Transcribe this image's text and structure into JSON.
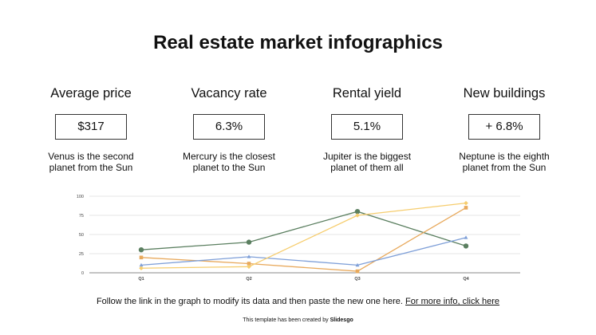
{
  "title": "Real estate market infographics",
  "stats": [
    {
      "label": "Average price",
      "value": "$317",
      "desc1": "Venus is the second",
      "desc2": "planet from the Sun"
    },
    {
      "label": "Vacancy rate",
      "value": "6.3%",
      "desc1": "Mercury is the closest",
      "desc2": "planet to the Sun"
    },
    {
      "label": "Rental yield",
      "value": "5.1%",
      "desc1": "Jupiter is the biggest",
      "desc2": "planet of them all"
    },
    {
      "label": "New buildings",
      "value": "+ 6.8%",
      "desc1": "Neptune is the eighth",
      "desc2": "planet from the Sun"
    }
  ],
  "chart_data": {
    "type": "line",
    "categories": [
      "Q1",
      "Q2",
      "Q3",
      "Q4"
    ],
    "ylim": [
      0,
      100
    ],
    "yticks": [
      0,
      25,
      50,
      75,
      100
    ],
    "grid": true,
    "series": [
      {
        "name": "green",
        "color": "#5b7f60",
        "marker": "circle",
        "values": [
          30,
          40,
          80,
          35
        ]
      },
      {
        "name": "orange",
        "color": "#e8a95c",
        "marker": "square",
        "values": [
          20,
          12,
          2,
          85
        ]
      },
      {
        "name": "blue",
        "color": "#7e9fd8",
        "marker": "triangle",
        "values": [
          10,
          21,
          10,
          46
        ]
      },
      {
        "name": "yellow",
        "color": "#f6cd6e",
        "marker": "diamond",
        "values": [
          6,
          8,
          75,
          91
        ]
      }
    ]
  },
  "footer": {
    "text": "Follow the link in the graph to modify its data and then paste the new one here.",
    "link": "For more info, click here"
  },
  "credit": {
    "text": "This template has been created by",
    "brand": "Slidesgo"
  }
}
